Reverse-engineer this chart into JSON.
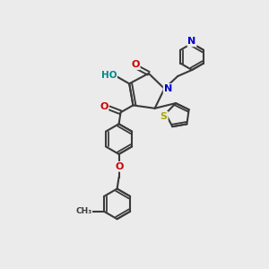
{
  "background_color": "#ebebeb",
  "atom_colors": {
    "C": "#3a3a3a",
    "N": "#0000cc",
    "O": "#cc0000",
    "S": "#aaaa00",
    "H": "#008888"
  },
  "bond_color": "#3a3a3a",
  "figsize": [
    3.0,
    3.0
  ],
  "dpi": 100
}
